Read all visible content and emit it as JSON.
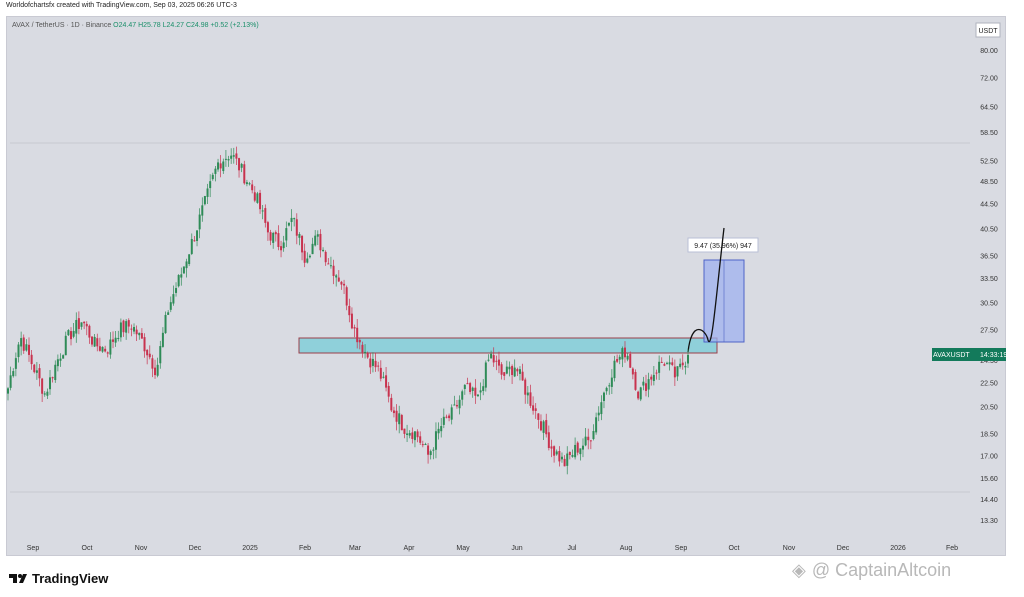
{
  "header": {
    "text": "Worldofchartsfx created with TradingView.com, Sep 03, 2025 06:26 UTC-3"
  },
  "legend": {
    "symbol": "AVAX / TetherUS · 1D · Binance",
    "values": "O24.47  H25.78  L24.27  C24.98  +0.52 (+2.13%)"
  },
  "chart_data": {
    "type": "candlestick",
    "title": "AVAX / TetherUS · 1D · Binance",
    "currency": "USDT",
    "ohlc": {
      "open": 24.47,
      "high": 25.78,
      "low": 24.27,
      "close": 24.98,
      "change": "+0.52 (+2.13%)"
    },
    "price_scale": "log",
    "y_ticks": [
      "80.00",
      "72.00",
      "64.50",
      "58.50",
      "52.50",
      "48.50",
      "44.50",
      "40.50",
      "36.50",
      "33.50",
      "30.50",
      "27.50",
      "24.50",
      "22.50",
      "20.50",
      "18.50",
      "17.00",
      "15.60",
      "14.40",
      "13.30"
    ],
    "x_ticks": [
      "Sep",
      "Oct",
      "Nov",
      "Dec",
      "2025",
      "Feb",
      "Mar",
      "Apr",
      "May",
      "Jun",
      "Jul",
      "Aug",
      "Sep",
      "Oct",
      "Nov",
      "Dec",
      "2026",
      "Feb"
    ],
    "series_close": [
      [
        "Sep",
        22.0
      ],
      [
        "Sep",
        26.8
      ],
      [
        "Sep",
        24.0
      ],
      [
        "Sep",
        21.5
      ],
      [
        "Oct",
        24.5
      ],
      [
        "Oct",
        27.0
      ],
      [
        "Oct",
        28.5
      ],
      [
        "Oct",
        26.0
      ],
      [
        "Oct",
        25.5
      ],
      [
        "Nov",
        27.5
      ],
      [
        "Nov",
        28.0
      ],
      [
        "Nov",
        26.0
      ],
      [
        "Nov",
        23.5
      ],
      [
        "Nov",
        30.0
      ],
      [
        "Nov",
        34.0
      ],
      [
        "Nov",
        39.0
      ],
      [
        "Dec",
        45.0
      ],
      [
        "Dec",
        52.0
      ],
      [
        "Dec",
        54.0
      ],
      [
        "Dec",
        50.0
      ],
      [
        "Dec",
        46.0
      ],
      [
        "Dec",
        40.0
      ],
      [
        "2025",
        38.0
      ],
      [
        "2025",
        42.0
      ],
      [
        "2025",
        36.5
      ],
      [
        "2025",
        39.0
      ],
      [
        "2025",
        35.5
      ],
      [
        "Feb",
        33.0
      ],
      [
        "Feb",
        27.5
      ],
      [
        "Feb",
        25.0
      ],
      [
        "Mar",
        23.5
      ],
      [
        "Mar",
        20.5
      ],
      [
        "Mar",
        19.0
      ],
      [
        "Mar",
        18.5
      ],
      [
        "Apr",
        17.0
      ],
      [
        "Apr",
        19.0
      ],
      [
        "Apr",
        20.0
      ],
      [
        "Apr",
        22.0
      ],
      [
        "May",
        21.0
      ],
      [
        "May",
        25.0
      ],
      [
        "May",
        23.0
      ],
      [
        "May",
        24.0
      ],
      [
        "Jun",
        21.5
      ],
      [
        "Jun",
        19.5
      ],
      [
        "Jun",
        17.5
      ],
      [
        "Jun",
        16.5
      ],
      [
        "Jul",
        17.5
      ],
      [
        "Jul",
        18.0
      ],
      [
        "Jul",
        21.0
      ],
      [
        "Jul",
        24.0
      ],
      [
        "Aug",
        25.5
      ],
      [
        "Aug",
        21.5
      ],
      [
        "Aug",
        23.0
      ],
      [
        "Aug",
        24.5
      ],
      [
        "Sep",
        23.0
      ],
      [
        "Sep",
        24.98
      ]
    ],
    "annotations": [
      {
        "type": "resistance_zone",
        "from": 24.5,
        "to": 26.5
      },
      {
        "type": "horizontal_line",
        "price": 56.0
      },
      {
        "type": "horizontal_line",
        "price": 14.7
      },
      {
        "type": "projection",
        "text": "9.47 (35.96%) 947"
      }
    ],
    "price_label": {
      "symbol": "AVAXUSDT",
      "time": "14:33:19"
    },
    "grid": false
  },
  "footer": {
    "brand": "TradingView"
  },
  "watermark": {
    "text": "@ CaptainAltcoin"
  },
  "colors": {
    "up": "#2e8b57",
    "down": "#c8324e",
    "zone_fill": "#8fd0da",
    "zone_border": "#9a3f4a",
    "box_fill": "#9fb2ef",
    "price_tag": "#137a5b"
  }
}
